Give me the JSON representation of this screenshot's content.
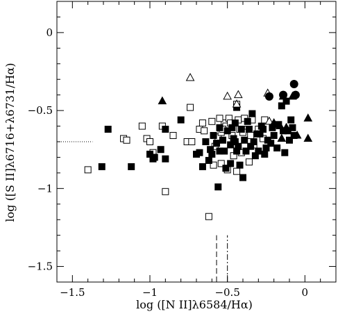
{
  "chart_data": {
    "type": "scatter",
    "xlabel": "log ([N II]λ6584/Hα)",
    "ylabel": "log ([S II]λ6716+λ6731/Hα)",
    "xlim": [
      -1.6,
      0.2
    ],
    "ylim": [
      -1.6,
      0.2
    ],
    "x_ticks": [
      -1.5,
      -1.0,
      -0.5,
      0.0
    ],
    "x_tick_labels": [
      "−1.5",
      "−1",
      "−0.5",
      "0"
    ],
    "y_ticks": [
      -1.5,
      -1.0,
      -0.5,
      0.0
    ],
    "y_tick_labels": [
      "−1.5",
      "−1",
      "−0.5",
      "0"
    ],
    "grid": false,
    "series": [
      {
        "marker": "open-square",
        "points": [
          [
            -1.4,
            -0.88
          ],
          [
            -1.17,
            -0.68
          ],
          [
            -1.15,
            -0.69
          ],
          [
            -1.05,
            -0.6
          ],
          [
            -1.02,
            -0.68
          ],
          [
            -1.0,
            -0.7
          ],
          [
            -0.98,
            -0.77
          ],
          [
            -0.92,
            -0.6
          ],
          [
            -0.9,
            -1.02
          ],
          [
            -0.85,
            -0.66
          ],
          [
            -0.76,
            -0.7
          ],
          [
            -0.74,
            -0.48
          ],
          [
            -0.73,
            -0.7
          ],
          [
            -0.68,
            -0.62
          ],
          [
            -0.66,
            -0.58
          ],
          [
            -0.65,
            -0.63
          ],
          [
            -0.62,
            -1.18
          ],
          [
            -0.6,
            -0.57
          ],
          [
            -0.58,
            -0.73
          ],
          [
            -0.56,
            -0.67
          ],
          [
            -0.54,
            -0.84
          ],
          [
            -0.54,
            -0.64
          ],
          [
            -0.52,
            -0.58
          ],
          [
            -0.51,
            -0.6
          ],
          [
            -0.49,
            -0.55
          ],
          [
            -0.47,
            -0.66
          ],
          [
            -0.46,
            -0.79
          ],
          [
            -0.45,
            -0.72
          ],
          [
            -0.44,
            -0.46
          ],
          [
            -0.43,
            -0.56
          ],
          [
            -0.42,
            -0.62
          ],
          [
            -0.41,
            -0.77
          ],
          [
            -0.39,
            -0.55
          ],
          [
            -0.37,
            -0.62
          ],
          [
            -0.36,
            -0.83
          ],
          [
            -0.34,
            -0.56
          ],
          [
            -0.33,
            -0.72
          ],
          [
            -0.3,
            -0.62
          ],
          [
            -0.27,
            -0.68
          ],
          [
            -0.26,
            -0.56
          ],
          [
            -0.5,
            -0.88
          ],
          [
            -0.44,
            -0.89
          ],
          [
            -0.55,
            -0.55
          ],
          [
            -0.53,
            -0.62
          ],
          [
            -0.59,
            -0.85
          ],
          [
            -0.48,
            -0.58
          ],
          [
            -0.4,
            -0.64
          ],
          [
            -0.35,
            -0.66
          ]
        ]
      },
      {
        "marker": "filled-square",
        "points": [
          [
            -1.31,
            -0.86
          ],
          [
            -1.27,
            -0.62
          ],
          [
            -1.12,
            -0.86
          ],
          [
            -1.0,
            -0.78
          ],
          [
            -0.98,
            -0.81
          ],
          [
            -0.97,
            -0.8
          ],
          [
            -0.93,
            -0.75
          ],
          [
            -0.9,
            -0.62
          ],
          [
            -0.9,
            -0.81
          ],
          [
            -0.8,
            -0.56
          ],
          [
            -0.7,
            -0.78
          ],
          [
            -0.68,
            -0.77
          ],
          [
            -0.66,
            -0.86
          ],
          [
            -0.64,
            -0.7
          ],
          [
            -0.61,
            -0.75
          ],
          [
            -0.6,
            -0.78
          ],
          [
            -0.59,
            -0.66
          ],
          [
            -0.56,
            -0.99
          ],
          [
            -0.55,
            -0.76
          ],
          [
            -0.53,
            -0.69
          ],
          [
            -0.51,
            -0.87
          ],
          [
            -0.5,
            -0.63
          ],
          [
            -0.48,
            -0.72
          ],
          [
            -0.47,
            -0.61
          ],
          [
            -0.46,
            -0.68
          ],
          [
            -0.45,
            -0.7
          ],
          [
            -0.44,
            -0.48
          ],
          [
            -0.43,
            -0.73
          ],
          [
            -0.42,
            -0.85
          ],
          [
            -0.41,
            -0.62
          ],
          [
            -0.4,
            -0.93
          ],
          [
            -0.39,
            -0.69
          ],
          [
            -0.38,
            -0.76
          ],
          [
            -0.37,
            -0.57
          ],
          [
            -0.36,
            -0.62
          ],
          [
            -0.35,
            -0.73
          ],
          [
            -0.34,
            -0.52
          ],
          [
            -0.33,
            -0.7
          ],
          [
            -0.32,
            -0.79
          ],
          [
            -0.31,
            -0.65
          ],
          [
            -0.3,
            -0.76
          ],
          [
            -0.29,
            -0.65
          ],
          [
            -0.28,
            -0.6
          ],
          [
            -0.27,
            -0.62
          ],
          [
            -0.26,
            -0.78
          ],
          [
            -0.25,
            -0.74
          ],
          [
            -0.24,
            -0.69
          ],
          [
            -0.22,
            -0.71
          ],
          [
            -0.21,
            -0.61
          ],
          [
            -0.2,
            -0.66
          ],
          [
            -0.18,
            -0.74
          ],
          [
            -0.17,
            -0.59
          ],
          [
            -0.15,
            -0.47
          ],
          [
            -0.14,
            -0.63
          ],
          [
            -0.13,
            -0.77
          ],
          [
            -0.12,
            -0.44
          ],
          [
            -0.11,
            -0.63
          ],
          [
            -0.1,
            -0.69
          ],
          [
            -0.09,
            -0.56
          ],
          [
            -0.08,
            -0.61
          ],
          [
            -0.07,
            -0.66
          ],
          [
            -0.52,
            -0.76
          ],
          [
            -0.48,
            -0.84
          ],
          [
            -0.57,
            -0.71
          ],
          [
            -0.62,
            -0.82
          ],
          [
            -0.45,
            -0.58
          ],
          [
            -0.44,
            -0.76
          ],
          [
            -0.55,
            -0.61
          ]
        ]
      },
      {
        "marker": "open-triangle",
        "points": [
          [
            -0.74,
            -0.29
          ],
          [
            -0.5,
            -0.41
          ],
          [
            -0.43,
            -0.4
          ],
          [
            -0.44,
            -0.46
          ],
          [
            -0.24,
            -0.39
          ],
          [
            -0.23,
            -0.57
          ]
        ]
      },
      {
        "marker": "filled-triangle",
        "points": [
          [
            -0.92,
            -0.44
          ],
          [
            -0.2,
            -0.58
          ],
          [
            -0.16,
            -0.6
          ],
          [
            -0.15,
            -0.68
          ],
          [
            -0.14,
            -0.41
          ],
          [
            -0.12,
            -0.61
          ],
          [
            -0.08,
            -0.41
          ],
          [
            -0.05,
            -0.66
          ],
          [
            0.02,
            -0.55
          ],
          [
            0.02,
            -0.68
          ]
        ]
      },
      {
        "marker": "filled-circle",
        "points": [
          [
            -0.23,
            -0.41
          ],
          [
            -0.14,
            -0.4
          ],
          [
            -0.07,
            -0.33
          ],
          [
            -0.06,
            -0.4
          ]
        ]
      }
    ],
    "reference_lines": [
      {
        "style": "dotted",
        "orientation": "horizontal",
        "y": -0.7,
        "x_from": -1.6,
        "x_to": -1.37
      },
      {
        "style": "dashed",
        "orientation": "vertical",
        "x": -0.57,
        "y_from": -1.6,
        "y_to": -1.3
      },
      {
        "style": "dash-dot",
        "orientation": "vertical",
        "x": -0.5,
        "y_from": -1.6,
        "y_to": -1.3
      }
    ]
  }
}
